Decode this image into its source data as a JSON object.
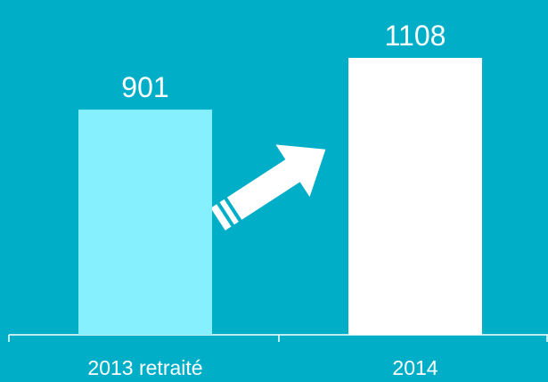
{
  "chart_data": {
    "type": "bar",
    "categories": [
      "2013 retraité",
      "2014"
    ],
    "values": [
      901,
      1108
    ],
    "colors": [
      "#86f0ff",
      "#ffffff"
    ]
  }
}
